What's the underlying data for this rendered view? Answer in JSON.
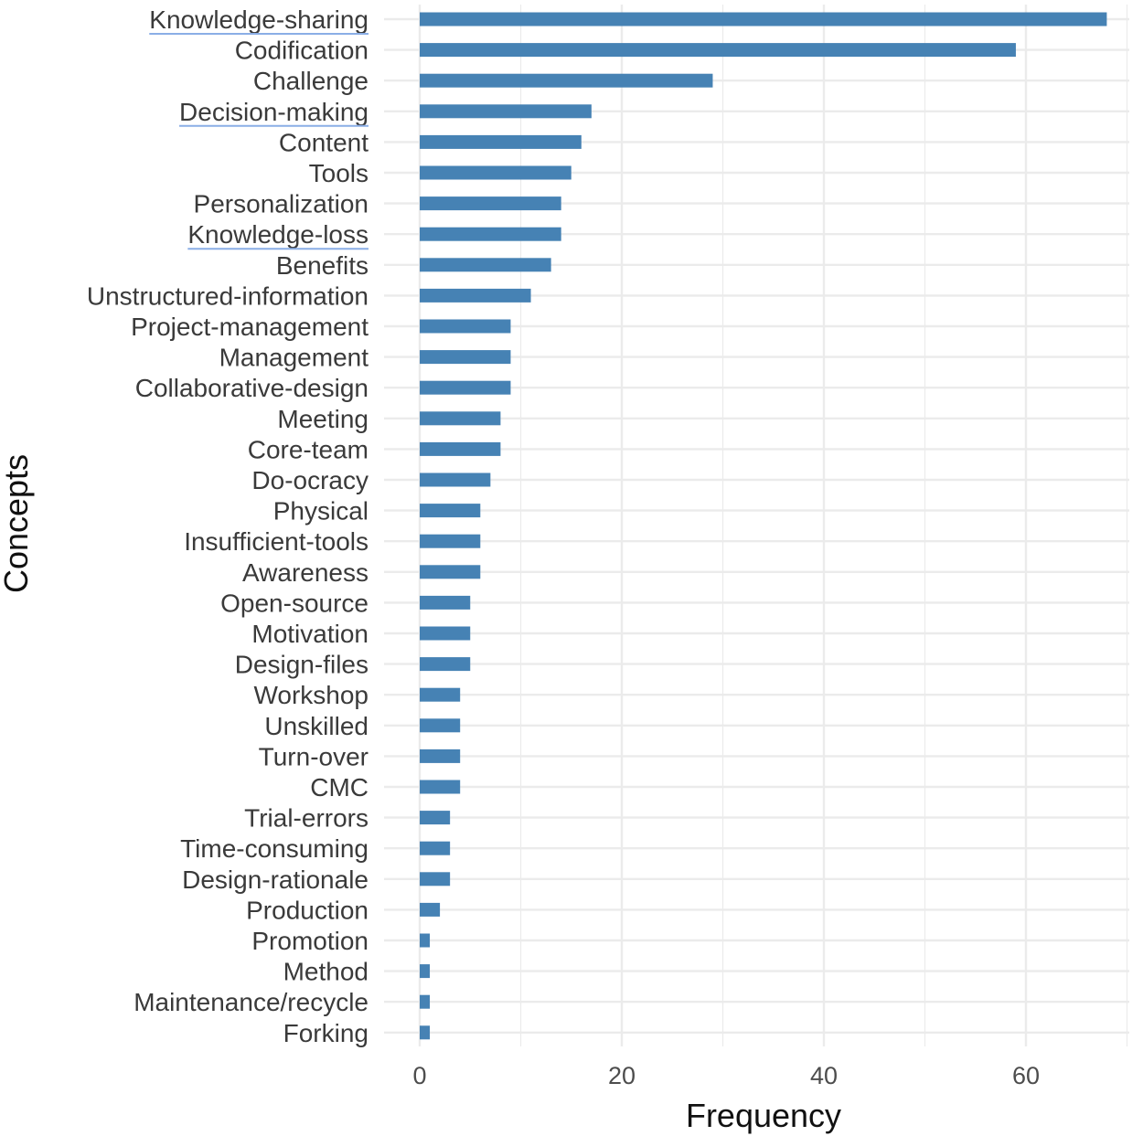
{
  "chart_data": {
    "type": "bar",
    "orientation": "horizontal",
    "xlabel": "Frequency",
    "ylabel": "Concepts",
    "xlim": [
      0,
      70
    ],
    "x_ticks": [
      "0",
      "20",
      "40",
      "60"
    ],
    "grid": true,
    "legend": "none",
    "categories": [
      "Knowledge-sharing",
      "Codification",
      "Challenge",
      "Decision-making",
      "Content",
      "Tools",
      "Personalization",
      "Knowledge-loss",
      "Benefits",
      "Unstructured-information",
      "Project-management",
      "Management",
      "Collaborative-design",
      "Meeting",
      "Core-team",
      "Do-ocracy",
      "Physical",
      "Insufficient-tools",
      "Awareness",
      "Open-source",
      "Motivation",
      "Design-files",
      "Workshop",
      "Unskilled",
      "Turn-over",
      "CMC",
      "Trial-errors",
      "Time-consuming",
      "Design-rationale",
      "Production",
      "Promotion",
      "Method",
      "Maintenance/recycle",
      "Forking"
    ],
    "values": [
      68,
      59,
      29,
      17,
      16,
      15,
      14,
      14,
      13,
      11,
      9,
      9,
      9,
      8,
      8,
      7,
      6,
      6,
      6,
      5,
      5,
      5,
      4,
      4,
      4,
      4,
      3,
      3,
      3,
      2,
      1,
      1,
      1,
      1
    ],
    "underlined_categories": [
      "Knowledge-sharing",
      "Decision-making",
      "Knowledge-loss"
    ],
    "colors": {
      "bar": "#4682b4",
      "grid": "#ebebeb",
      "underline": "#8aaee6",
      "text": "#3a3a3a",
      "title": "#111111"
    }
  }
}
